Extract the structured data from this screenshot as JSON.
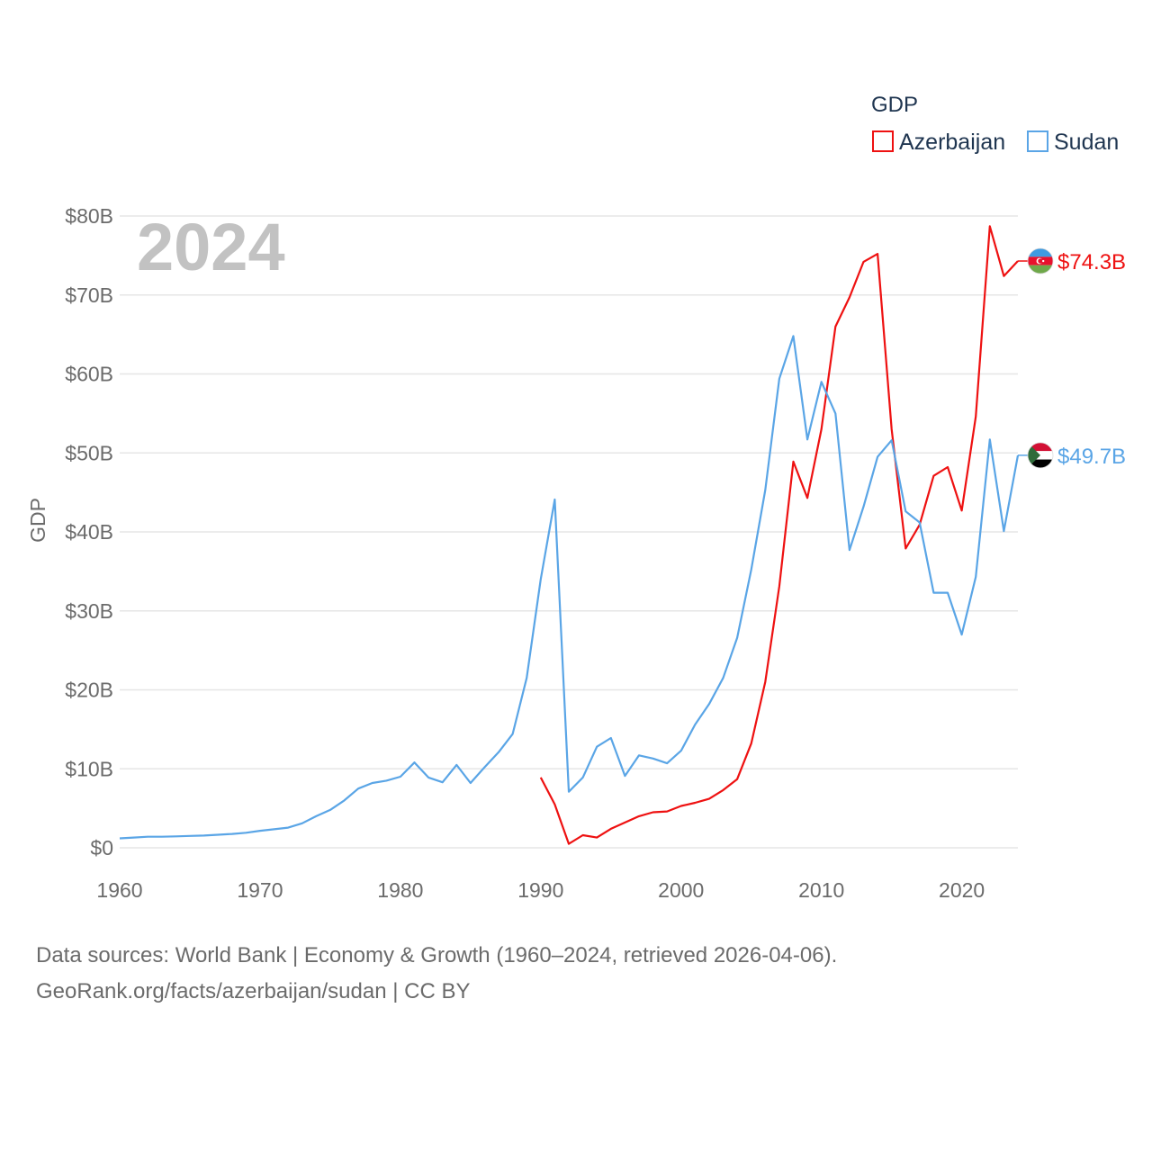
{
  "chart_data": {
    "type": "line",
    "year_label": "2024",
    "ylabel": "GDP",
    "ylim": [
      0,
      80
    ],
    "yticks": [
      0,
      10,
      20,
      30,
      40,
      50,
      60,
      70,
      80
    ],
    "ytick_labels": [
      "$0",
      "$10B",
      "$20B",
      "$30B",
      "$40B",
      "$50B",
      "$60B",
      "$70B",
      "$80B"
    ],
    "xlim": [
      1960,
      2024
    ],
    "xticks": [
      1960,
      1970,
      1980,
      1990,
      2000,
      2010,
      2020
    ],
    "xtick_labels": [
      "1960",
      "1970",
      "1980",
      "1990",
      "2000",
      "2010",
      "2020"
    ],
    "legend": {
      "title": "GDP",
      "position": "top-right"
    },
    "series": [
      {
        "name": "Azerbaijan",
        "color": "#ee1111",
        "end_label": "$74.3B",
        "flag": "azerbaijan-flag",
        "start_year": 1990,
        "values": [
          8.9,
          5.5,
          0.5,
          1.6,
          1.3,
          2.4,
          3.2,
          4.0,
          4.5,
          4.6,
          5.3,
          5.7,
          6.2,
          7.3,
          8.7,
          13.2,
          21.0,
          33.1,
          48.9,
          44.3,
          53.0,
          66.0,
          69.7,
          74.2,
          75.2,
          53.0,
          37.9,
          40.9,
          47.1,
          48.2,
          42.7,
          54.6,
          78.7,
          72.4,
          74.3
        ]
      },
      {
        "name": "Sudan",
        "color": "#5aa5e6",
        "end_label": "$49.7B",
        "flag": "sudan-flag",
        "start_year": 1960,
        "values": [
          1.2,
          1.3,
          1.4,
          1.4,
          1.45,
          1.5,
          1.55,
          1.65,
          1.75,
          1.9,
          2.15,
          2.35,
          2.55,
          3.1,
          4.0,
          4.8,
          6.0,
          7.5,
          8.2,
          8.5,
          9.0,
          10.8,
          8.9,
          8.3,
          10.5,
          8.2,
          10.2,
          12.1,
          14.4,
          21.5,
          34.0,
          44.1,
          7.1,
          8.9,
          12.8,
          13.9,
          9.1,
          11.7,
          11.3,
          10.7,
          12.3,
          15.6,
          18.2,
          21.5,
          26.6,
          35.2,
          45.3,
          59.4,
          64.8,
          51.7,
          59.0,
          55.0,
          37.7,
          43.2,
          49.5,
          51.6,
          42.6,
          41.2,
          32.3,
          32.3,
          27.0,
          34.3,
          51.7,
          40.1,
          49.7
        ]
      }
    ]
  },
  "footer": {
    "source_line1": "Data sources: World Bank | Economy & Growth (1960–2024, retrieved 2026-04-06).",
    "source_line2": "GeoRank.org/facts/azerbaijan/sudan | CC BY"
  }
}
